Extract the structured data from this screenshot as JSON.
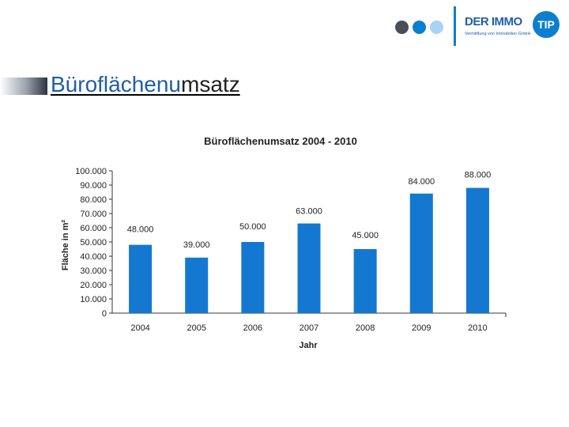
{
  "header": {
    "dots": [
      {
        "name": "dot-dark",
        "color": "#4a4f57"
      },
      {
        "name": "dot-blue",
        "color": "#0b7fcf"
      },
      {
        "name": "dot-light",
        "color": "#a9d3f2"
      }
    ],
    "divider_color": "#0b7fcf",
    "logo": {
      "main": "DER IMMO",
      "badge": "TIP",
      "tagline": "Vermittlung von Immobilien GmbH",
      "main_color": "#1f5fa8",
      "badge_color": "#0b7fcf"
    }
  },
  "page": {
    "title_part_a": "Büroflächenu",
    "title_part_b": "msatz"
  },
  "chart_data": {
    "type": "bar",
    "title": "Büroflächenumsatz 2004 - 2010",
    "xlabel": "Jahr",
    "ylabel": "Fläche in m²",
    "categories": [
      "2004",
      "2005",
      "2006",
      "2007",
      "2008",
      "2009",
      "2010"
    ],
    "values": [
      48000,
      39000,
      50000,
      63000,
      45000,
      84000,
      88000
    ],
    "data_labels": [
      "48.000",
      "39.000",
      "50.000",
      "63.000",
      "45.000",
      "84.000",
      "88.000"
    ],
    "ylim": [
      0,
      100000
    ],
    "yticks": [
      0,
      10000,
      20000,
      30000,
      40000,
      50000,
      60000,
      70000,
      80000,
      90000,
      100000
    ],
    "ytick_labels": [
      "0",
      "10.000",
      "20.000",
      "30.000",
      "40.000",
      "50.000",
      "60.000",
      "70.000",
      "80.000",
      "90.000",
      "100.000"
    ],
    "bar_color": "#1478d0",
    "grid": false,
    "legend": "none"
  }
}
